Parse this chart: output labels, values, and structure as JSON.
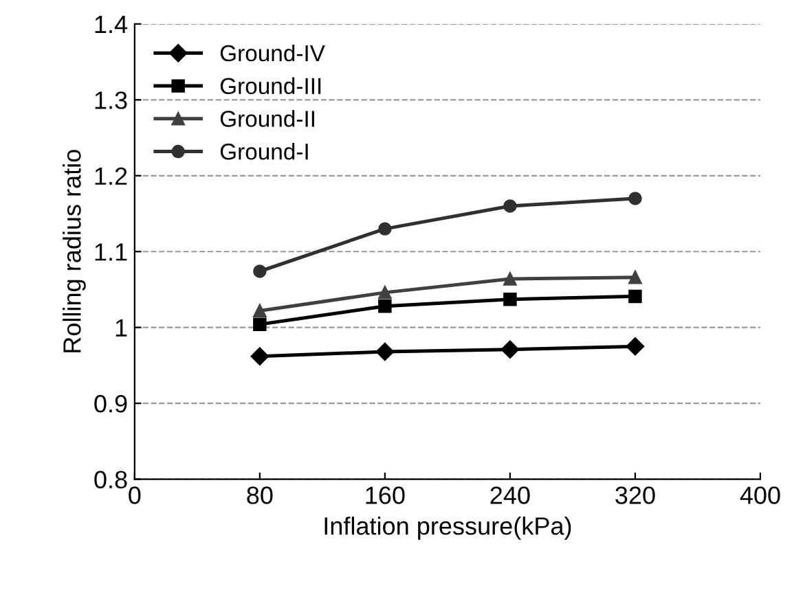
{
  "chart_data": {
    "type": "line",
    "xlabel": "Inflation pressure(kPa)",
    "ylabel": "Rolling radius ratio",
    "x": [
      80,
      160,
      240,
      320
    ],
    "series": [
      {
        "name": "Ground-IV",
        "color": "#000000",
        "marker": "diamond",
        "values": [
          0.962,
          0.968,
          0.971,
          0.975
        ]
      },
      {
        "name": "Ground-III",
        "color": "#000000",
        "marker": "square",
        "values": [
          1.004,
          1.028,
          1.037,
          1.041
        ]
      },
      {
        "name": "Ground-II",
        "color": "#404040",
        "marker": "triangle",
        "values": [
          1.022,
          1.046,
          1.064,
          1.066
        ]
      },
      {
        "name": "Ground-I",
        "color": "#303030",
        "marker": "circle",
        "values": [
          1.074,
          1.13,
          1.16,
          1.17
        ]
      }
    ],
    "xlim": [
      0,
      400
    ],
    "xticks": [
      0,
      80,
      160,
      240,
      320,
      400
    ],
    "ylim": [
      0.8,
      1.4
    ],
    "yticks": [
      0.8,
      0.9,
      1,
      1.1,
      1.2,
      1.3,
      1.4
    ],
    "grid": "y",
    "legend": "top left"
  }
}
